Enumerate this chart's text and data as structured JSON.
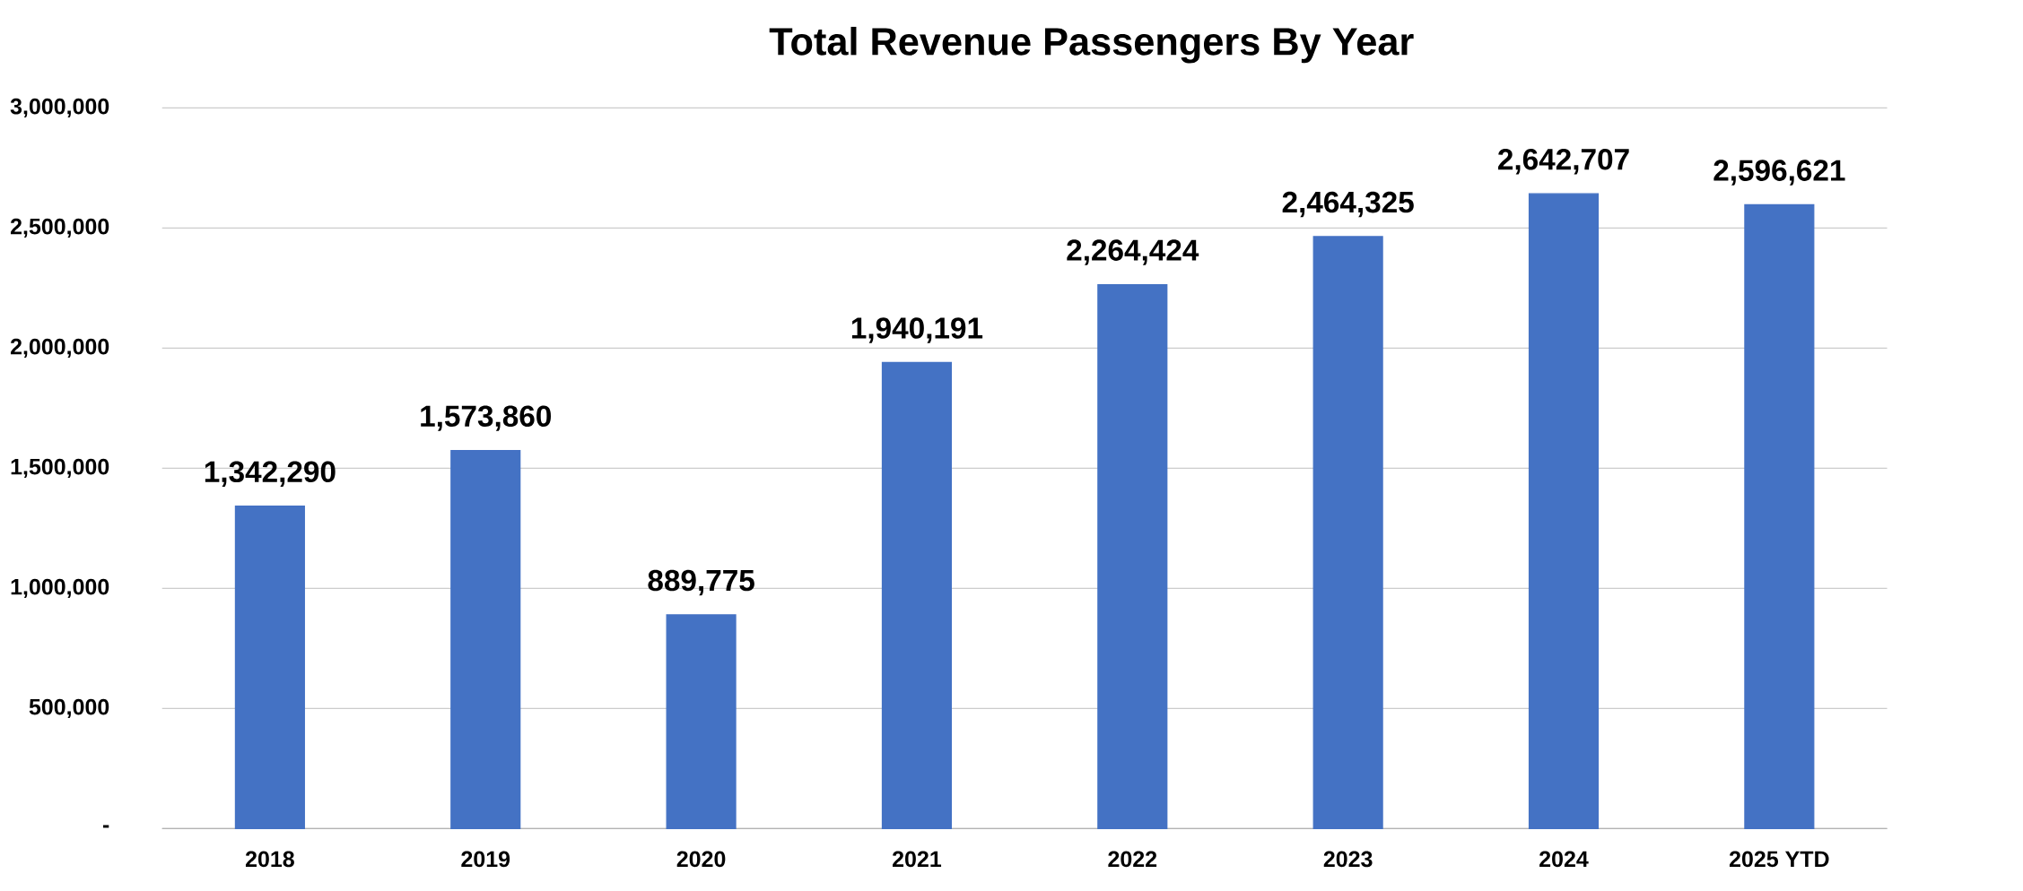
{
  "chart_data": {
    "type": "bar",
    "title": "Total Revenue Passengers By Year",
    "categories": [
      "2018",
      "2019",
      "2020",
      "2021",
      "2022",
      "2023",
      "2024",
      "2025 YTD"
    ],
    "values": [
      1342290,
      1573860,
      889775,
      1940191,
      2264424,
      2464325,
      2642707,
      2596621
    ],
    "value_labels": [
      "1,342,290",
      "1,573,860",
      "889,775",
      "1,940,191",
      "2,264,424",
      "2,464,325",
      "2,642,707",
      "2,596,621"
    ],
    "color": "#4472c4",
    "ylim": [
      0,
      3000000
    ],
    "yticks": [
      {
        "value": 0,
        "label": "-"
      },
      {
        "value": 500000,
        "label": "500,000"
      },
      {
        "value": 1000000,
        "label": "1,000,000"
      },
      {
        "value": 1500000,
        "label": "1,500,000"
      },
      {
        "value": 2000000,
        "label": "2,000,000"
      },
      {
        "value": 2500000,
        "label": "2,500,000"
      },
      {
        "value": 3000000,
        "label": "3,000,000"
      }
    ],
    "grid": "y"
  }
}
